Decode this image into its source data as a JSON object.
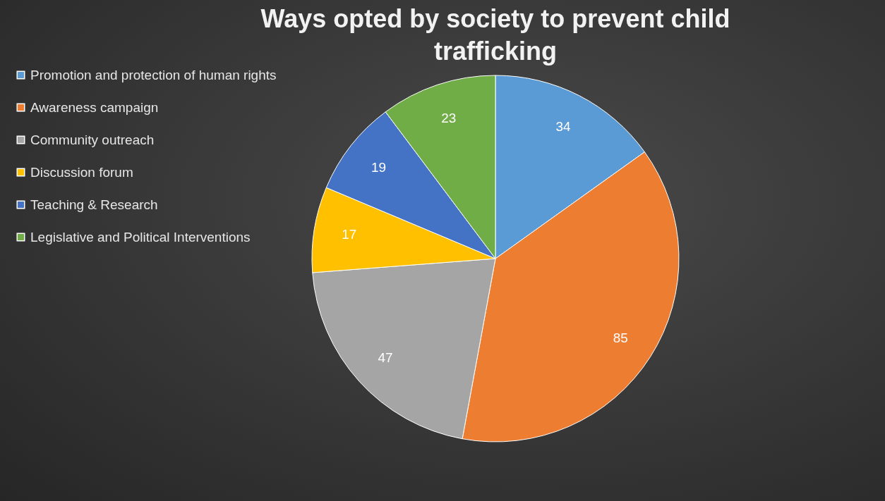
{
  "chart_data": {
    "type": "pie",
    "title": "Ways opted by society to prevent child trafficking",
    "categories": [
      "Promotion and protection of human rights",
      "Awareness campaign",
      "Community outreach",
      "Discussion forum",
      "Teaching & Research",
      "Legislative and Political Interventions"
    ],
    "values": [
      34,
      85,
      47,
      17,
      19,
      23
    ],
    "colors": [
      "#5b9bd5",
      "#ed7d31",
      "#a5a5a5",
      "#ffc000",
      "#4472c4",
      "#70ad47"
    ],
    "data_labels": true,
    "legend": "left"
  }
}
